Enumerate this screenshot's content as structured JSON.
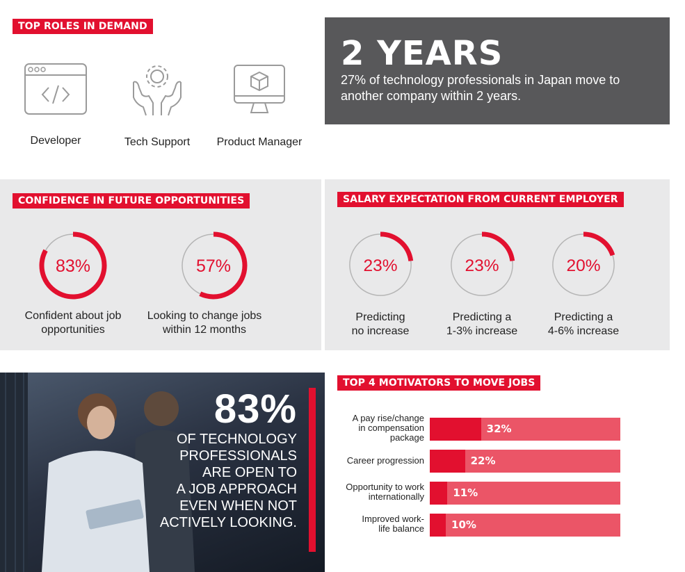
{
  "roles": {
    "heading": "TOP ROLES IN DEMAND",
    "items": [
      {
        "label": "Developer",
        "icon": "code-window-icon"
      },
      {
        "label": "Tech Support",
        "icon": "hands-gear-icon"
      },
      {
        "label": "Product Manager",
        "icon": "monitor-cube-icon"
      }
    ]
  },
  "tenure": {
    "headline": "2 YEARS",
    "text": "27% of technology professionals in Japan move to another company within 2 years."
  },
  "confidence": {
    "heading": "CONFIDENCE IN FUTURE OPPORTUNITIES",
    "items": [
      {
        "value": 83,
        "display": "83%",
        "label_line1": "Confident about job",
        "label_line2": "opportunities"
      },
      {
        "value": 57,
        "display": "57%",
        "label_line1": "Looking to change jobs",
        "label_line2": "within 12 months"
      }
    ]
  },
  "salary": {
    "heading": "SALARY EXPECTATION FROM CURRENT EMPLOYER",
    "items": [
      {
        "value": 23,
        "display": "23%",
        "label_line1": "Predicting",
        "label_line2": "no increase"
      },
      {
        "value": 23,
        "display": "23%",
        "label_line1": "Predicting a",
        "label_line2": "1-3% increase"
      },
      {
        "value": 20,
        "display": "20%",
        "label_line1": "Predicting a",
        "label_line2": "4-6% increase"
      }
    ]
  },
  "openness": {
    "percent": "83%",
    "lines": [
      "OF TECHNOLOGY",
      "PROFESSIONALS",
      "ARE OPEN TO",
      "A JOB APPROACH",
      "EVEN WHEN NOT",
      "ACTIVELY LOOKING."
    ]
  },
  "motivators": {
    "heading": "TOP 4 MOTIVATORS TO MOVE JOBS",
    "items": [
      {
        "label_lines": [
          "A pay rise/change",
          "in compensation",
          "package"
        ],
        "value": 32,
        "display": "32%"
      },
      {
        "label_lines": [
          "Career progression"
        ],
        "value": 22,
        "display": "22%"
      },
      {
        "label_lines": [
          "Opportunity to work",
          "internationally"
        ],
        "value": 11,
        "display": "11%"
      },
      {
        "label_lines": [
          "Improved work-",
          "life balance"
        ],
        "value": 10,
        "display": "10%"
      }
    ]
  },
  "colors": {
    "accent": "#e2102f",
    "bar_bg": "#eb5567",
    "panel": "#e9e9ea",
    "dark": "#58585a",
    "ring": "#b5b5b5"
  }
}
